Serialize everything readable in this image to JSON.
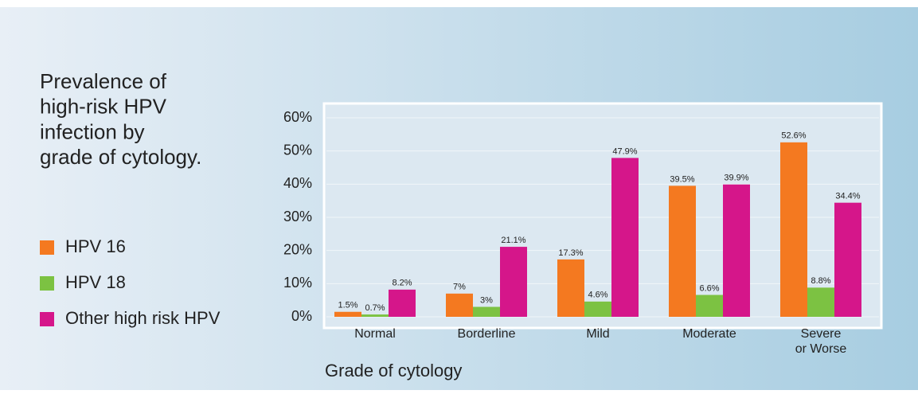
{
  "chart_data": {
    "type": "bar",
    "title": "Prevalence of\nhigh-risk HPV\ninfection by\ngrade of cytology.",
    "x_label": "Grade of cytology",
    "categories": [
      "Normal",
      "Borderline",
      "Mild",
      "Moderate",
      "Severe\nor Worse"
    ],
    "series": [
      {
        "name": "HPV 16",
        "color": "#f47920",
        "values": [
          1.5,
          7,
          17.3,
          39.5,
          52.6
        ],
        "value_labels": [
          "1.5%",
          "7%",
          "17.3%",
          "39.5%",
          "52.6%"
        ]
      },
      {
        "name": "HPV 18",
        "color": "#7cc242",
        "values": [
          0.7,
          3,
          4.6,
          6.6,
          8.8
        ],
        "value_labels": [
          "0.7%",
          "3%",
          "4.6%",
          "6.6%",
          "8.8%"
        ]
      },
      {
        "name": "Other high risk HPV",
        "color": "#d5168a",
        "values": [
          8.2,
          21.1,
          47.9,
          39.9,
          34.4
        ],
        "value_labels": [
          "8.2%",
          "21.1%",
          "47.9%",
          "39.9%",
          "34.4%"
        ]
      }
    ],
    "ylim": [
      0,
      60
    ],
    "yticks": [
      {
        "value": 0,
        "label": "0%"
      },
      {
        "value": 10,
        "label": "10%"
      },
      {
        "value": 20,
        "label": "20%"
      },
      {
        "value": 30,
        "label": "30%"
      },
      {
        "value": 40,
        "label": "40%"
      },
      {
        "value": 50,
        "label": "50%"
      },
      {
        "value": 60,
        "label": "60%"
      }
    ],
    "grid": true,
    "legend": "left"
  }
}
